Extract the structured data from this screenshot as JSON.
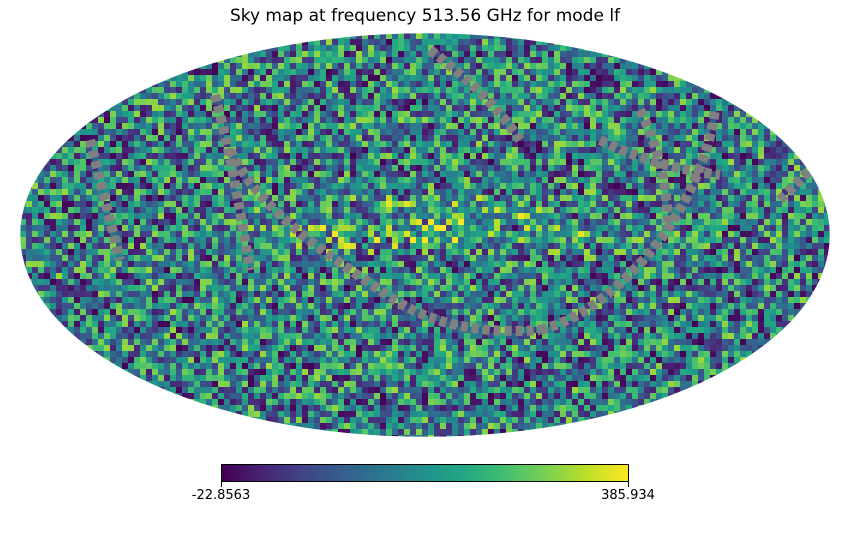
{
  "chart_data": {
    "type": "heatmap",
    "projection": "mollweide",
    "title": "Sky map at frequency 513.56 GHz for mode lf",
    "colormap": "viridis",
    "colorbar": {
      "min": -22.8563,
      "max": 385.934,
      "min_label": "-22.8563",
      "max_label": "385.934"
    },
    "masked_color": "#808080",
    "notes": "Per-pixel random-looking values spanning the colorbar range, with several grey masked bands (great-circle scan strips)"
  }
}
